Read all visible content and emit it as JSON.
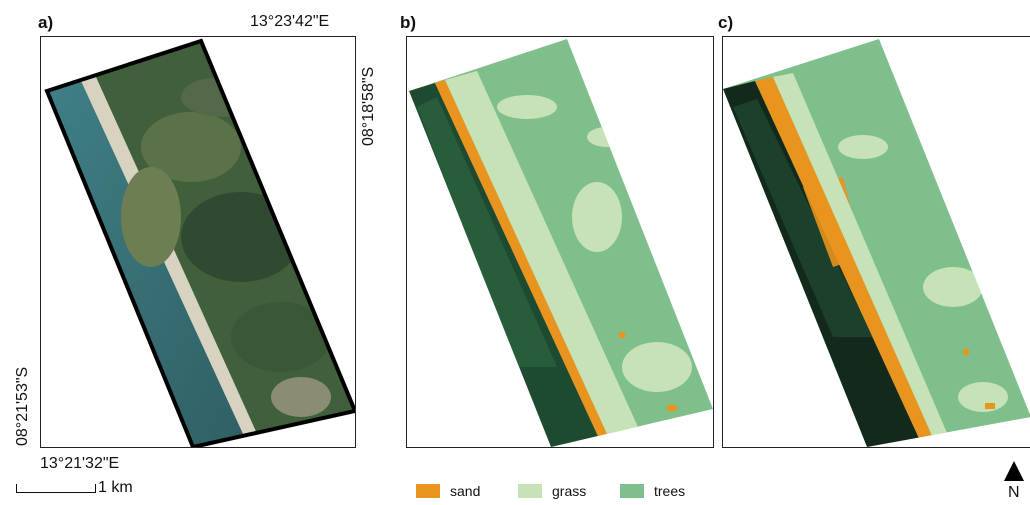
{
  "panels": [
    {
      "label": "a)"
    },
    {
      "label": "b)"
    },
    {
      "label": "c)"
    }
  ],
  "coords": {
    "top_right_lon": "13°23'42\"E",
    "bottom_left_lon": "13°21'32\"E",
    "right_lat": "08°18'58\"S",
    "left_lat": "08°21'53\"S"
  },
  "scale_bar": {
    "label": "1 km"
  },
  "north_arrow": {
    "label": "N"
  },
  "legend": [
    {
      "label": "sand",
      "color": "#e8941e"
    },
    {
      "label": "grass",
      "color": "#c6e2b6"
    },
    {
      "label": "trees",
      "color": "#7fbf8c"
    }
  ],
  "colors": {
    "sea_dark": "#2f5f64",
    "sea_light": "#3f7f86",
    "land_dark": "#2f4a30",
    "land_mid": "#4d6a3e",
    "beach": "#d8d3c1",
    "deep_green": "#1f4a32",
    "dark_green_c": "#12291b"
  }
}
